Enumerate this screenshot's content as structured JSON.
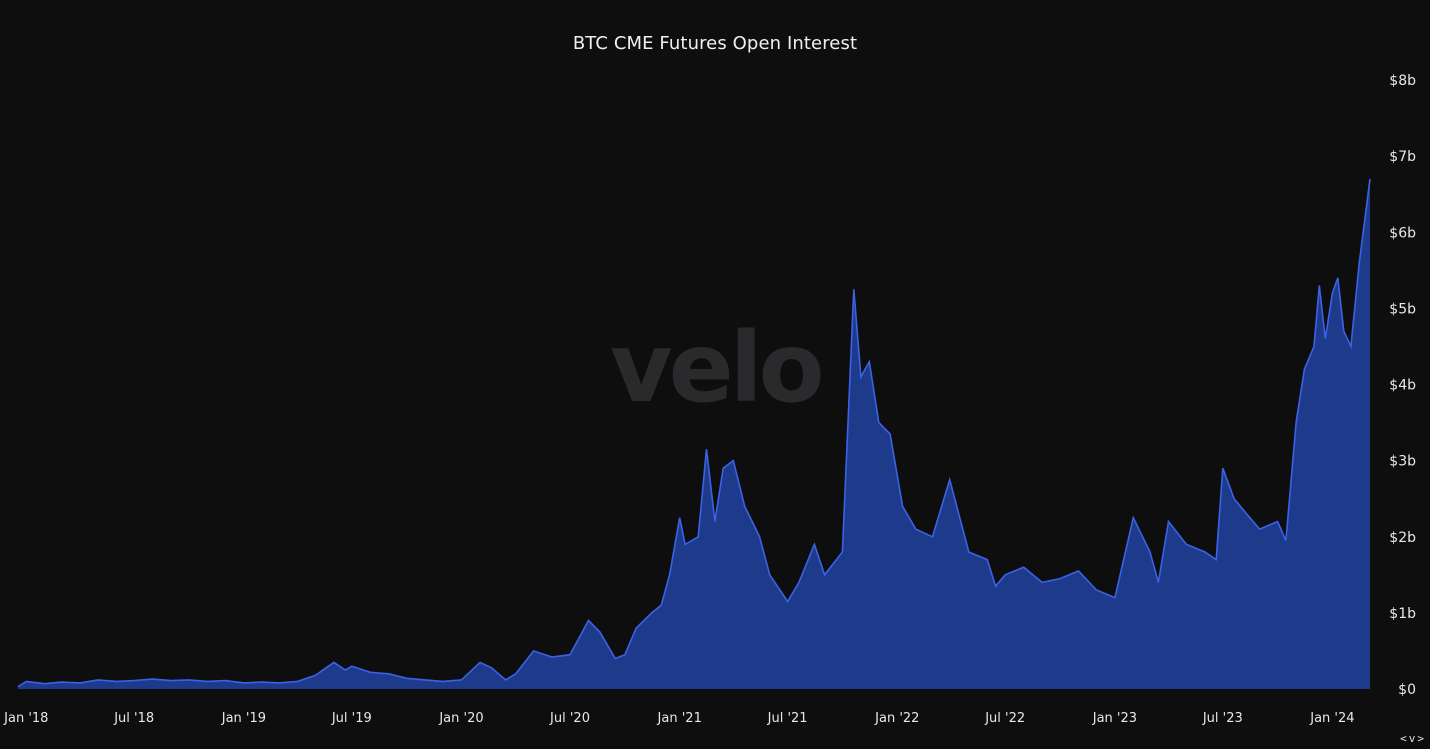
{
  "chart_data": {
    "type": "area",
    "title": "BTC CME Futures Open Interest",
    "watermark": "velo",
    "xlabel": "",
    "ylabel": "",
    "ylim": [
      0,
      8
    ],
    "y_unit": "billions USD",
    "y_ticks": [
      {
        "value": 0,
        "label": "$0"
      },
      {
        "value": 1,
        "label": "$1b"
      },
      {
        "value": 2,
        "label": "$2b"
      },
      {
        "value": 3,
        "label": "$3b"
      },
      {
        "value": 4,
        "label": "$4b"
      },
      {
        "value": 5,
        "label": "$5b"
      },
      {
        "value": 6,
        "label": "$6b"
      },
      {
        "value": 7,
        "label": "$7b"
      },
      {
        "value": 8,
        "label": "$8b"
      }
    ],
    "x_ticks": [
      {
        "date": "2018-01-01",
        "label": "Jan '18"
      },
      {
        "date": "2018-07-01",
        "label": "Jul '18"
      },
      {
        "date": "2019-01-01",
        "label": "Jan '19"
      },
      {
        "date": "2019-07-01",
        "label": "Jul '19"
      },
      {
        "date": "2020-01-01",
        "label": "Jan '20"
      },
      {
        "date": "2020-07-01",
        "label": "Jul '20"
      },
      {
        "date": "2021-01-01",
        "label": "Jan '21"
      },
      {
        "date": "2021-07-01",
        "label": "Jul '21"
      },
      {
        "date": "2022-01-01",
        "label": "Jan '22"
      },
      {
        "date": "2022-07-01",
        "label": "Jul '22"
      },
      {
        "date": "2023-01-01",
        "label": "Jan '23"
      },
      {
        "date": "2023-07-01",
        "label": "Jul '23"
      },
      {
        "date": "2024-01-01",
        "label": "Jan '24"
      }
    ],
    "x_range": [
      "2017-12-18",
      "2024-03-04"
    ],
    "colors": {
      "fill": "#1e3a8a",
      "line": "#3b62e6",
      "background": "#0e0e0f"
    },
    "series": [
      {
        "points": [
          [
            "2017-12-18",
            0.03
          ],
          [
            "2018-01-01",
            0.1
          ],
          [
            "2018-02-01",
            0.07
          ],
          [
            "2018-03-01",
            0.09
          ],
          [
            "2018-04-01",
            0.08
          ],
          [
            "2018-05-01",
            0.12
          ],
          [
            "2018-06-01",
            0.1
          ],
          [
            "2018-07-01",
            0.11
          ],
          [
            "2018-08-01",
            0.13
          ],
          [
            "2018-09-01",
            0.11
          ],
          [
            "2018-10-01",
            0.12
          ],
          [
            "2018-11-01",
            0.1
          ],
          [
            "2018-12-01",
            0.11
          ],
          [
            "2019-01-01",
            0.08
          ],
          [
            "2019-02-01",
            0.09
          ],
          [
            "2019-03-01",
            0.08
          ],
          [
            "2019-04-01",
            0.1
          ],
          [
            "2019-05-01",
            0.18
          ],
          [
            "2019-06-01",
            0.35
          ],
          [
            "2019-06-20",
            0.25
          ],
          [
            "2019-07-01",
            0.3
          ],
          [
            "2019-08-01",
            0.22
          ],
          [
            "2019-09-01",
            0.2
          ],
          [
            "2019-10-01",
            0.14
          ],
          [
            "2019-11-01",
            0.12
          ],
          [
            "2019-12-01",
            0.1
          ],
          [
            "2020-01-01",
            0.12
          ],
          [
            "2020-02-01",
            0.35
          ],
          [
            "2020-02-20",
            0.28
          ],
          [
            "2020-03-15",
            0.12
          ],
          [
            "2020-04-01",
            0.2
          ],
          [
            "2020-05-01",
            0.5
          ],
          [
            "2020-05-20",
            0.45
          ],
          [
            "2020-06-01",
            0.42
          ],
          [
            "2020-07-01",
            0.45
          ],
          [
            "2020-08-01",
            0.9
          ],
          [
            "2020-08-20",
            0.75
          ],
          [
            "2020-09-15",
            0.4
          ],
          [
            "2020-10-01",
            0.45
          ],
          [
            "2020-10-20",
            0.8
          ],
          [
            "2020-11-15",
            1.0
          ],
          [
            "2020-12-01",
            1.1
          ],
          [
            "2020-12-15",
            1.5
          ],
          [
            "2021-01-01",
            2.25
          ],
          [
            "2021-01-10",
            1.9
          ],
          [
            "2021-02-01",
            2.0
          ],
          [
            "2021-02-15",
            3.15
          ],
          [
            "2021-03-01",
            2.2
          ],
          [
            "2021-03-15",
            2.9
          ],
          [
            "2021-04-01",
            3.0
          ],
          [
            "2021-04-20",
            2.4
          ],
          [
            "2021-05-15",
            2.0
          ],
          [
            "2021-06-01",
            1.5
          ],
          [
            "2021-07-01",
            1.15
          ],
          [
            "2021-07-20",
            1.4
          ],
          [
            "2021-08-15",
            1.9
          ],
          [
            "2021-09-01",
            1.5
          ],
          [
            "2021-10-01",
            1.8
          ],
          [
            "2021-10-20",
            5.25
          ],
          [
            "2021-11-01",
            4.1
          ],
          [
            "2021-11-15",
            4.3
          ],
          [
            "2021-12-01",
            3.5
          ],
          [
            "2021-12-20",
            3.35
          ],
          [
            "2022-01-10",
            2.4
          ],
          [
            "2022-02-01",
            2.1
          ],
          [
            "2022-03-01",
            2.0
          ],
          [
            "2022-03-30",
            2.75
          ],
          [
            "2022-05-01",
            1.8
          ],
          [
            "2022-06-01",
            1.7
          ],
          [
            "2022-06-15",
            1.35
          ],
          [
            "2022-07-01",
            1.5
          ],
          [
            "2022-08-01",
            1.6
          ],
          [
            "2022-09-01",
            1.4
          ],
          [
            "2022-10-01",
            1.45
          ],
          [
            "2022-11-01",
            1.55
          ],
          [
            "2022-12-01",
            1.3
          ],
          [
            "2023-01-01",
            1.2
          ],
          [
            "2023-02-01",
            2.25
          ],
          [
            "2023-03-01",
            1.8
          ],
          [
            "2023-03-15",
            1.4
          ],
          [
            "2023-04-01",
            2.2
          ],
          [
            "2023-05-01",
            1.9
          ],
          [
            "2023-06-01",
            1.8
          ],
          [
            "2023-06-20",
            1.7
          ],
          [
            "2023-07-01",
            2.9
          ],
          [
            "2023-07-20",
            2.5
          ],
          [
            "2023-08-10",
            2.3
          ],
          [
            "2023-09-01",
            2.1
          ],
          [
            "2023-10-01",
            2.2
          ],
          [
            "2023-10-15",
            1.95
          ],
          [
            "2023-11-01",
            3.5
          ],
          [
            "2023-11-15",
            4.2
          ],
          [
            "2023-12-01",
            4.5
          ],
          [
            "2023-12-10",
            5.3
          ],
          [
            "2023-12-20",
            4.6
          ],
          [
            "2024-01-01",
            5.2
          ],
          [
            "2024-01-10",
            5.4
          ],
          [
            "2024-01-20",
            4.7
          ],
          [
            "2024-02-01",
            4.5
          ],
          [
            "2024-02-15",
            5.6
          ],
          [
            "2024-03-04",
            6.7
          ]
        ]
      }
    ]
  },
  "controls": {
    "scroll_label": "<v>"
  }
}
